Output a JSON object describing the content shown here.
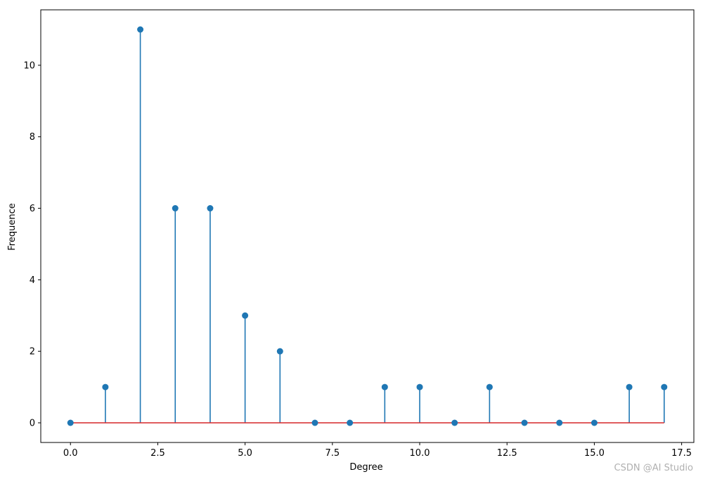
{
  "chart_data": {
    "type": "stem",
    "title": "",
    "xlabel": "Degree",
    "ylabel": "Frequence",
    "x": [
      0,
      1,
      2,
      3,
      4,
      5,
      6,
      7,
      8,
      9,
      10,
      11,
      12,
      13,
      14,
      15,
      16,
      17
    ],
    "values": [
      0,
      1,
      11,
      6,
      6,
      3,
      2,
      0,
      0,
      1,
      1,
      0,
      1,
      0,
      0,
      0,
      1,
      1
    ],
    "xlim": [
      -0.85,
      17.85
    ],
    "ylim": [
      -0.55,
      11.55
    ],
    "xticks": [
      0.0,
      2.5,
      5.0,
      7.5,
      10.0,
      12.5,
      15.0,
      17.5
    ],
    "xtick_labels": [
      "0.0",
      "2.5",
      "5.0",
      "7.5",
      "10.0",
      "12.5",
      "15.0",
      "17.5"
    ],
    "yticks": [
      0,
      2,
      4,
      6,
      8,
      10
    ],
    "ytick_labels": [
      "0",
      "2",
      "4",
      "6",
      "8",
      "10"
    ],
    "grid": false,
    "colors": {
      "stem": "#1f77b4",
      "marker": "#1f77b4",
      "baseline": "#d62728"
    }
  },
  "watermark": "CSDN @AI Studio"
}
